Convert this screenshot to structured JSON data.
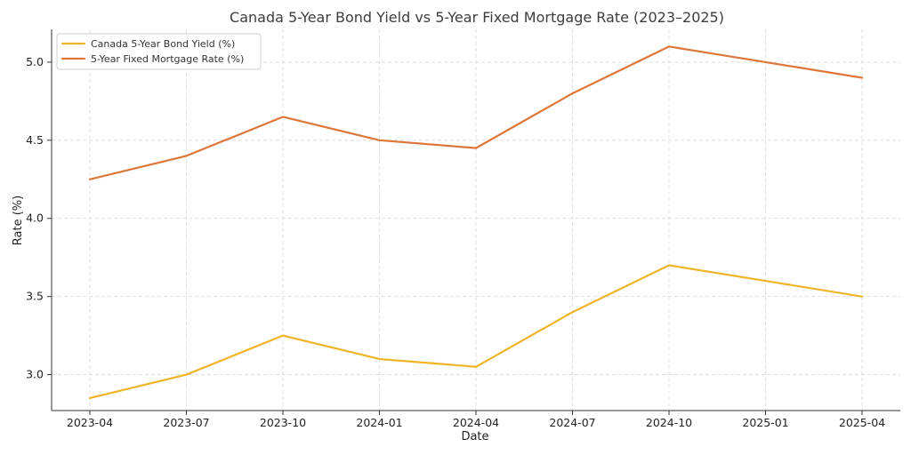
{
  "chart_data": {
    "type": "line",
    "title": "Canada 5-Year Bond Yield vs 5-Year Fixed Mortgage Rate (2023–2025)",
    "xlabel": "Date",
    "ylabel": "Rate (%)",
    "x": [
      "2023-04",
      "2023-07",
      "2023-10",
      "2024-01",
      "2024-04",
      "2024-07",
      "2024-10",
      "2025-01",
      "2025-04"
    ],
    "xticks": [
      "2023-04",
      "2023-07",
      "2023-10",
      "2024-01",
      "2024-04",
      "2024-07",
      "2024-10",
      "2025-01",
      "2025-04"
    ],
    "yticks": [
      "3.0",
      "3.5",
      "4.0",
      "4.5",
      "5.0"
    ],
    "ylim": [
      2.77,
      5.21
    ],
    "grid": true,
    "legend_position": "top-left",
    "series": [
      {
        "name": "Canada 5-Year Bond Yield (%)",
        "color": "#f0b429",
        "values": [
          2.85,
          3.0,
          3.25,
          3.1,
          3.05,
          3.4,
          3.7,
          3.6,
          3.5
        ]
      },
      {
        "name": "5-Year Fixed Mortgage Rate (%)",
        "color": "#dd7639",
        "values": [
          4.25,
          4.4,
          4.65,
          4.5,
          4.45,
          4.8,
          5.1,
          5.0,
          4.9
        ]
      }
    ]
  }
}
